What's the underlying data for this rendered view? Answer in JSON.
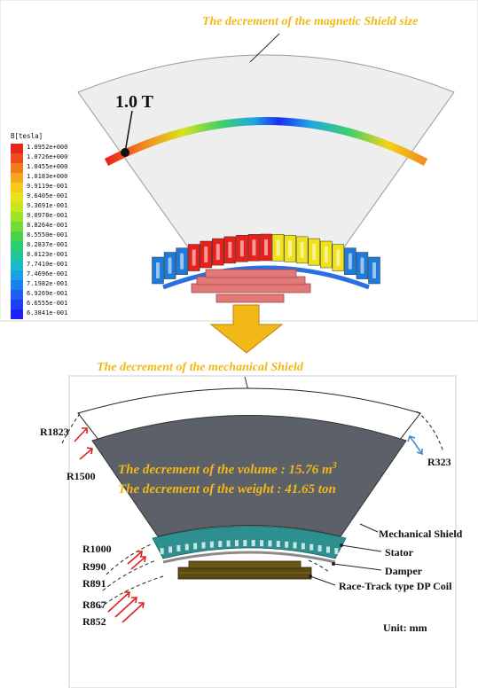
{
  "top_panel": {
    "title": "The decrement of the magnetic Shield size",
    "peak_label": "1.0 T",
    "legend": {
      "title": "B[tesla]",
      "values": [
        "1.0952e+000",
        "1.0726e+000",
        "1.0455e+000",
        "1.0183e+000",
        "9.9119e-001",
        "9.6405e-001",
        "9.3691e-001",
        "9.0978e-001",
        "8.8264e-001",
        "8.5550e-001",
        "8.2837e-001",
        "8.0123e-001",
        "7.7410e-001",
        "7.4696e-001",
        "7.1982e-001",
        "6.9269e-001",
        "6.6555e-001",
        "6.3841e-001"
      ],
      "colors": [
        "#e8241c",
        "#f04a1e",
        "#f47a20",
        "#f8a51e",
        "#f6c81a",
        "#e8e21a",
        "#c8e81c",
        "#9ee428",
        "#72dc38",
        "#48d448",
        "#2ccc70",
        "#22c4a0",
        "#1cb8cc",
        "#1aa0e4",
        "#1c80ec",
        "#1e5ef0",
        "#1e3ef4",
        "#1e22f8"
      ]
    }
  },
  "bottom_panel": {
    "title": "The decrement of the mechanical Shield",
    "volume_line": "The decrement of the volume : 15.76 m",
    "volume_sup": "3",
    "weight_line": "The decrement of the weight : 41.65 ton",
    "radius_labels": [
      "R1823",
      "R1500",
      "R323",
      "R1000",
      "R990",
      "R891",
      "R867",
      "R852"
    ],
    "component_labels": {
      "mechanical_shield": "Mechanical Shield",
      "stator": "Stator",
      "damper": "Damper",
      "coil": "Race-Track type DP Coil"
    },
    "unit": "Unit: mm"
  },
  "colors": {
    "accent_orange": "#f2b817",
    "shield_gray": "#5c6068",
    "stator_teal": "#3aa0a0",
    "coil_brown": "#5b4a12",
    "arrow_red": "#e02020",
    "arrow_blue": "#4a8ac8"
  }
}
